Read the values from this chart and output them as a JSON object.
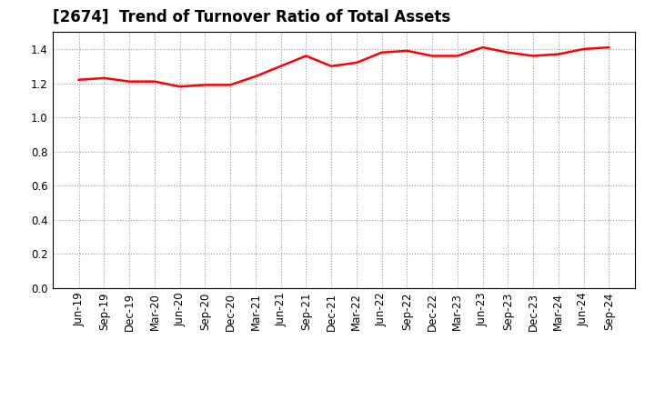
{
  "title": "[2674]  Trend of Turnover Ratio of Total Assets",
  "labels": [
    "Jun-19",
    "Sep-19",
    "Dec-19",
    "Mar-20",
    "Jun-20",
    "Sep-20",
    "Dec-20",
    "Mar-21",
    "Jun-21",
    "Sep-21",
    "Dec-21",
    "Mar-22",
    "Jun-22",
    "Sep-22",
    "Dec-22",
    "Mar-23",
    "Jun-23",
    "Sep-23",
    "Dec-23",
    "Mar-24",
    "Jun-24",
    "Sep-24"
  ],
  "values": [
    1.22,
    1.23,
    1.21,
    1.21,
    1.18,
    1.19,
    1.19,
    1.24,
    1.3,
    1.36,
    1.3,
    1.32,
    1.38,
    1.39,
    1.36,
    1.36,
    1.41,
    1.38,
    1.36,
    1.37,
    1.4,
    1.41
  ],
  "line_color": "#ff0000",
  "line_width": 1.8,
  "ylim": [
    0.0,
    1.5
  ],
  "yticks": [
    0.0,
    0.2,
    0.4,
    0.6,
    0.8,
    1.0,
    1.2,
    1.4
  ],
  "grid_color": "#999999",
  "bg_color": "#ffffff",
  "title_fontsize": 12,
  "tick_fontsize": 8.5
}
